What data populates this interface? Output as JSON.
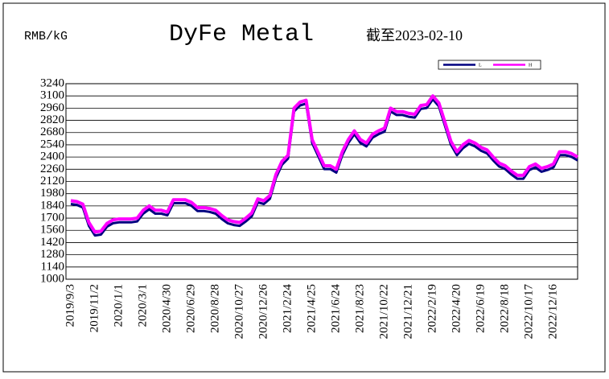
{
  "chart_data": {
    "type": "line",
    "title": "DyFe Metal",
    "y_label": "RMB/kG",
    "subtitle": "截至2023-02-10",
    "categories": [
      "2019/9/3",
      null,
      null,
      null,
      "2019/11/2",
      null,
      null,
      null,
      "2020/1/1",
      null,
      null,
      null,
      "2020/3/1",
      null,
      null,
      null,
      "2020/4/30",
      null,
      null,
      null,
      "2020/6/29",
      null,
      null,
      null,
      "2020/8/28",
      null,
      null,
      null,
      "2020/10/27",
      null,
      null,
      null,
      "2020/12/26",
      null,
      null,
      null,
      "2021/2/24",
      null,
      null,
      null,
      "2021/4/25",
      null,
      null,
      null,
      "2021/6/24",
      null,
      null,
      null,
      "2021/8/23",
      null,
      null,
      null,
      "2021/10/22",
      null,
      null,
      null,
      "2021/12/21",
      null,
      null,
      null,
      "2022/2/19",
      null,
      null,
      null,
      "2022/4/20",
      null,
      null,
      null,
      "2022/6/19",
      null,
      null,
      null,
      "2022/8/18",
      null,
      null,
      null,
      "2022/10/17",
      null,
      null,
      null,
      "2022/12/16",
      null,
      null,
      null,
      null
    ],
    "series": [
      {
        "name": "L",
        "color": "#000080",
        "values": [
          1880,
          1870,
          1840,
          1630,
          1520,
          1530,
          1620,
          1660,
          1670,
          1670,
          1670,
          1680,
          1770,
          1820,
          1770,
          1770,
          1750,
          1890,
          1890,
          1890,
          1860,
          1800,
          1800,
          1790,
          1770,
          1710,
          1660,
          1640,
          1630,
          1680,
          1740,
          1900,
          1880,
          1940,
          2180,
          2330,
          2400,
          2940,
          3010,
          3030,
          2580,
          2430,
          2280,
          2280,
          2240,
          2440,
          2580,
          2680,
          2580,
          2540,
          2640,
          2680,
          2710,
          2940,
          2900,
          2900,
          2880,
          2870,
          2970,
          2980,
          3080,
          3000,
          2780,
          2560,
          2440,
          2520,
          2570,
          2540,
          2490,
          2460,
          2380,
          2310,
          2280,
          2220,
          2170,
          2170,
          2270,
          2300,
          2250,
          2270,
          2300,
          2440,
          2440,
          2420,
          2380
        ]
      },
      {
        "name": "H",
        "color": "#ff00ff",
        "values": [
          1900,
          1890,
          1860,
          1650,
          1540,
          1550,
          1640,
          1680,
          1690,
          1690,
          1690,
          1700,
          1790,
          1840,
          1790,
          1790,
          1770,
          1910,
          1910,
          1910,
          1880,
          1820,
          1820,
          1810,
          1790,
          1730,
          1680,
          1660,
          1650,
          1700,
          1760,
          1920,
          1900,
          1960,
          2200,
          2350,
          2420,
          2960,
          3030,
          3050,
          2600,
          2450,
          2300,
          2300,
          2260,
          2460,
          2600,
          2700,
          2600,
          2560,
          2660,
          2700,
          2730,
          2960,
          2920,
          2920,
          2900,
          2890,
          2990,
          3000,
          3100,
          3020,
          2800,
          2580,
          2460,
          2540,
          2590,
          2560,
          2510,
          2480,
          2400,
          2330,
          2300,
          2240,
          2190,
          2190,
          2290,
          2320,
          2270,
          2290,
          2320,
          2460,
          2460,
          2440,
          2400
        ]
      }
    ],
    "ylim": [
      1000,
      3240
    ],
    "yticks": [
      1000,
      1140,
      1280,
      1420,
      1560,
      1700,
      1840,
      1980,
      2120,
      2260,
      2400,
      2540,
      2680,
      2820,
      2960,
      3100,
      3240
    ],
    "grid": true,
    "legend": "top-right"
  }
}
